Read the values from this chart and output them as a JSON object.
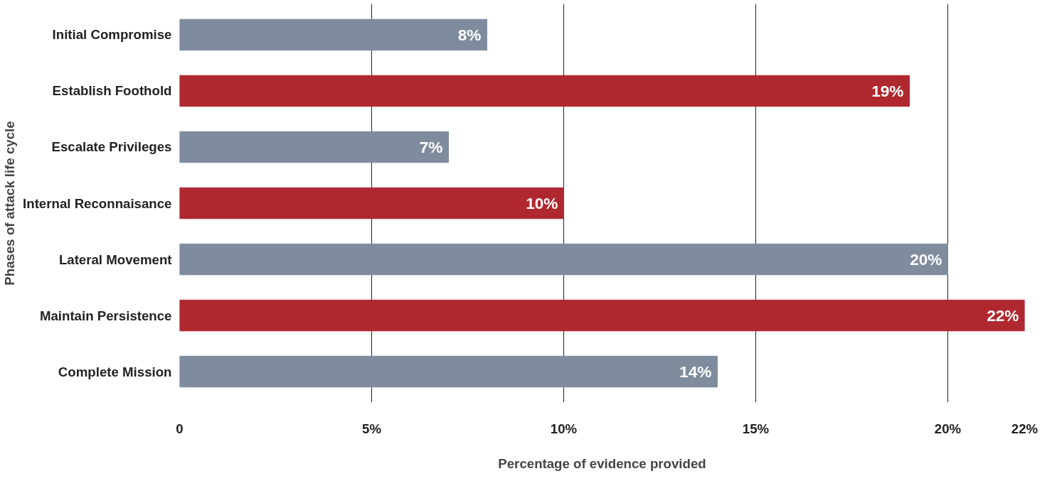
{
  "chart_data": {
    "type": "bar",
    "orientation": "horizontal",
    "xlabel": "Percentage of evidence provided",
    "ylabel": "Phases of attack life cycle",
    "categories": [
      "Initial Compromise",
      "Establish Foothold",
      "Escalate Privileges",
      "Internal Reconnaisance",
      "Lateral Movement",
      "Maintain Persistence",
      "Complete Mission"
    ],
    "values": [
      8,
      19,
      7,
      10,
      20,
      22,
      14
    ],
    "colors": [
      "#7f8c9d",
      "#b0282f",
      "#7f8c9d",
      "#b0282f",
      "#7f8c9d",
      "#b0282f",
      "#7f8c9d"
    ],
    "value_labels": [
      "8%",
      "19%",
      "7%",
      "10%",
      "20%",
      "22%",
      "14%"
    ],
    "xlim": [
      0,
      22
    ],
    "xticks": [
      0,
      {
        "value": 5,
        "label": "5%"
      },
      {
        "value": 10,
        "label": "10%"
      },
      {
        "value": 15,
        "label": "15%"
      },
      {
        "value": 20,
        "label": "20%"
      },
      {
        "value": 22,
        "label": "22%"
      }
    ],
    "grid": "x"
  }
}
